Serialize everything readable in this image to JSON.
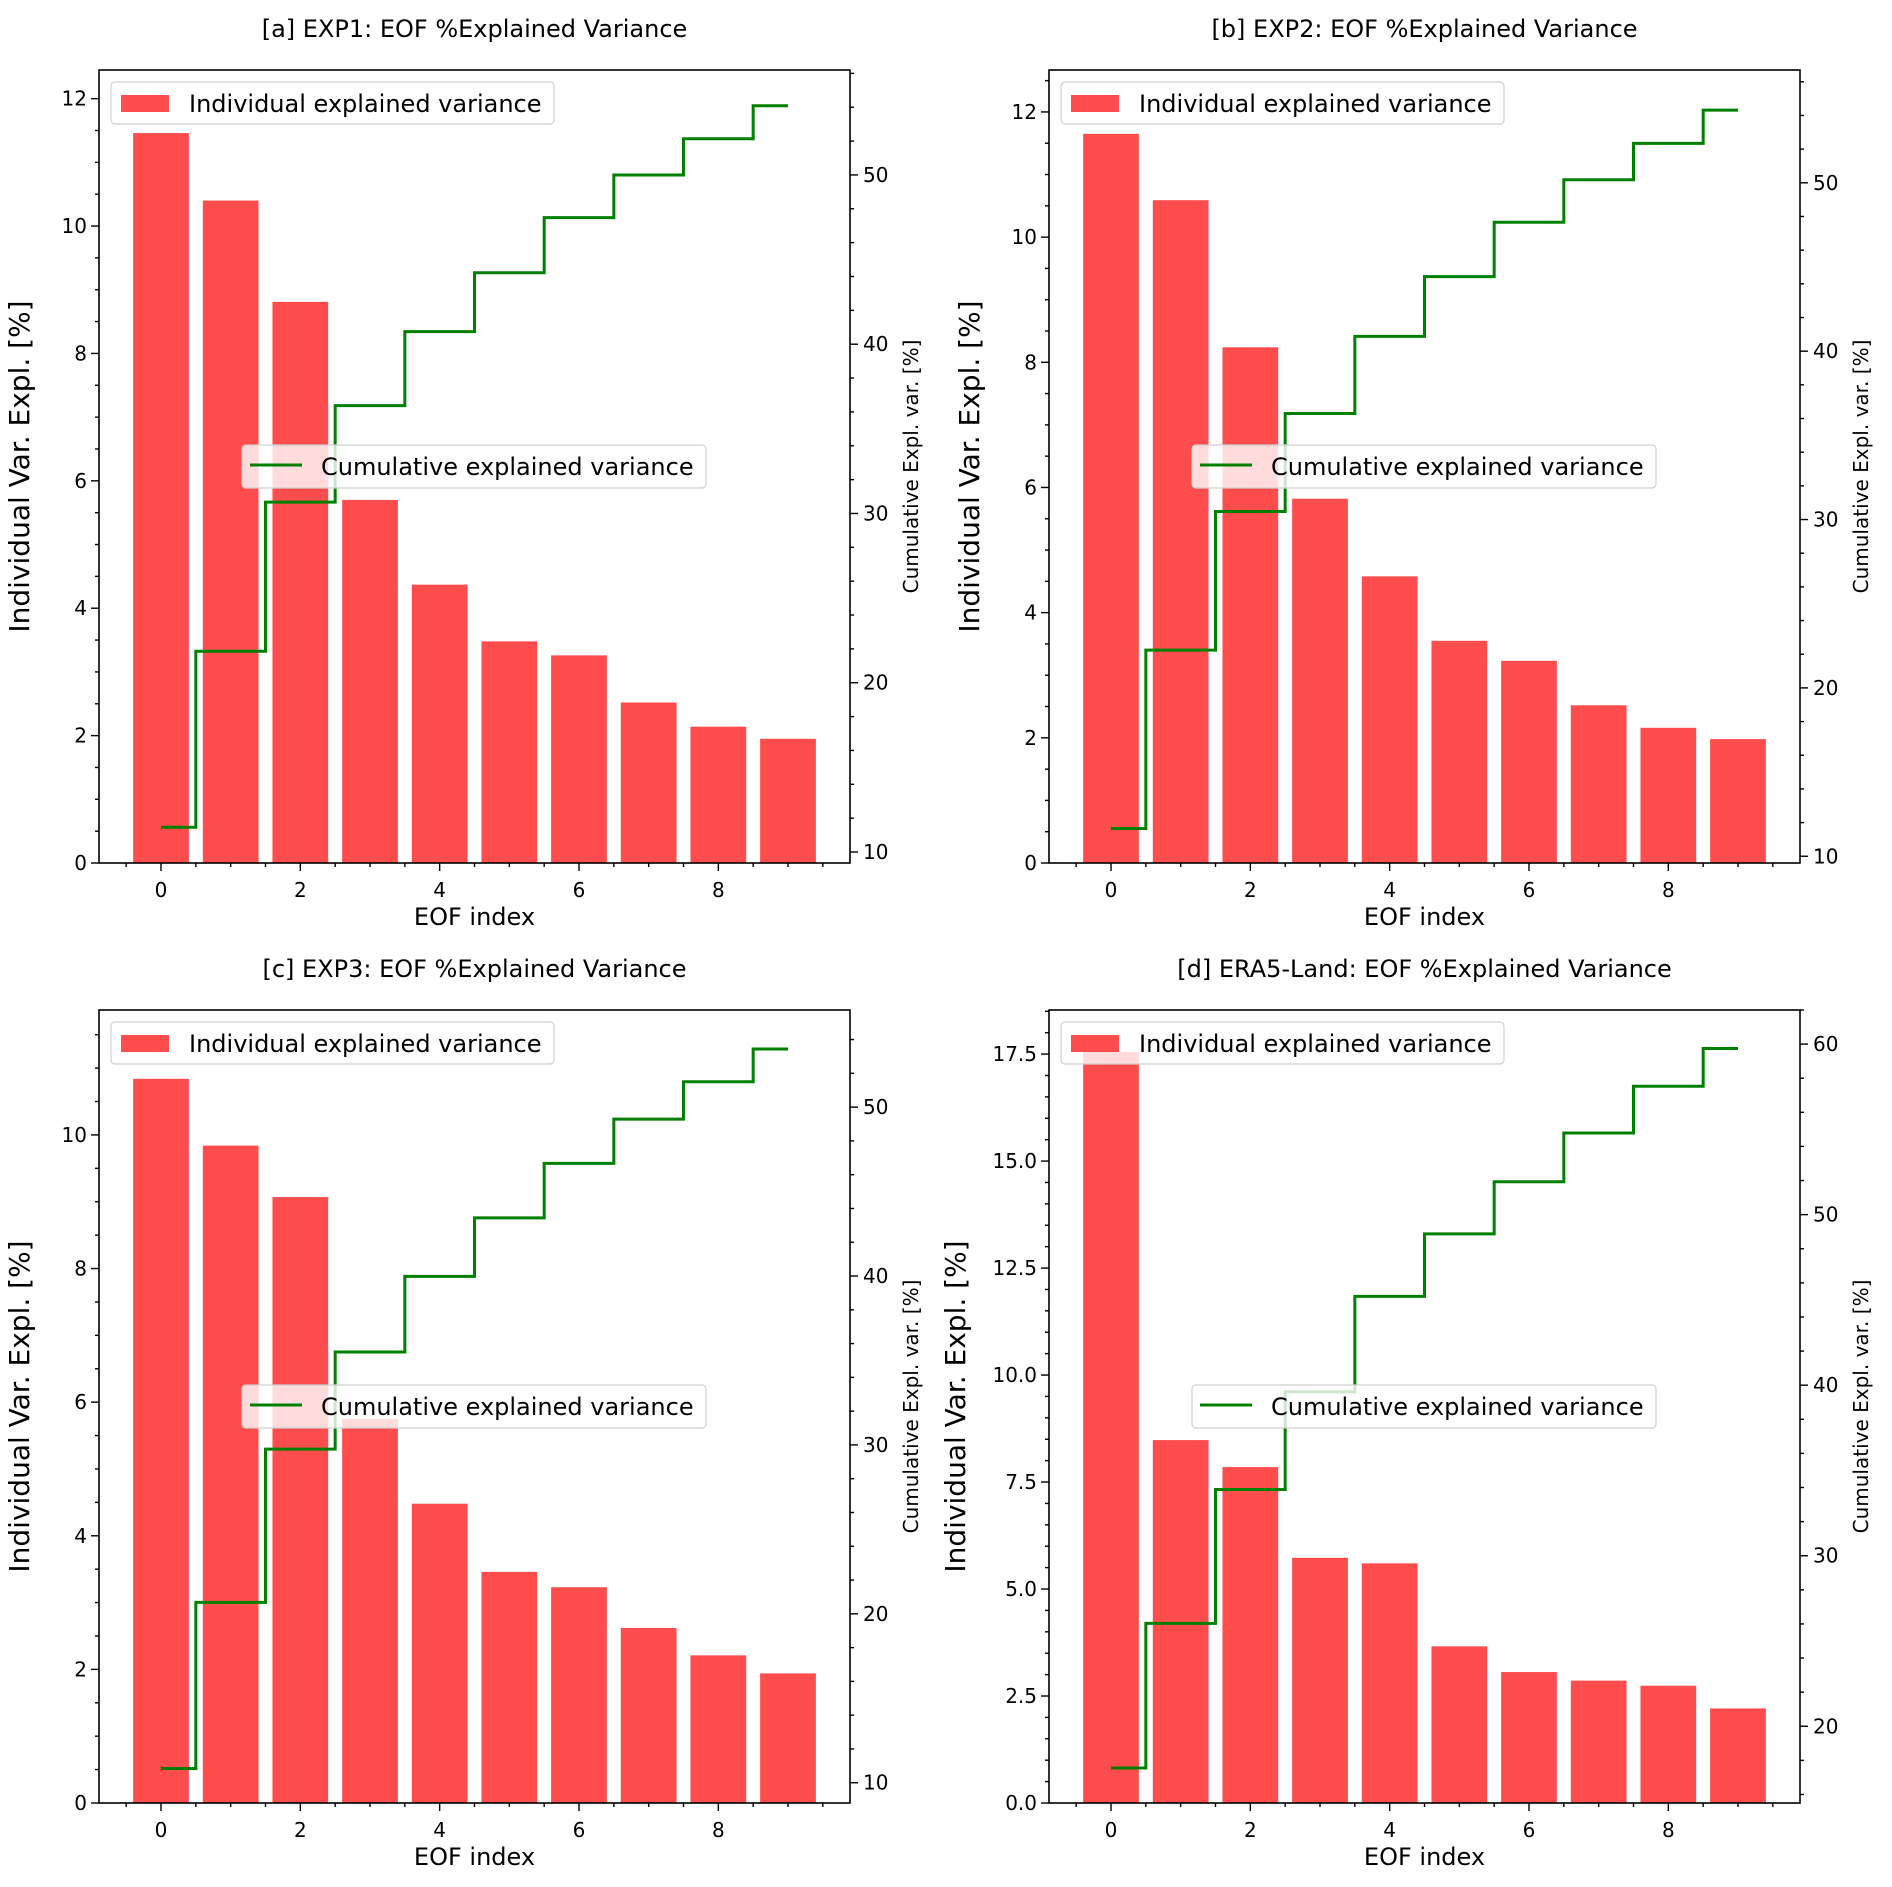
{
  "colors": {
    "bar": "#ff4d4d",
    "line": "#008000",
    "axis": "#000000",
    "legend_border": "#d0d0d0"
  },
  "chart_data": [
    {
      "id": "a",
      "type": "bar",
      "title": "[a] EXP1: EOF %Explained Variance",
      "xlabel": "EOF index",
      "ylabel": "Individual Var. Expl. [%]",
      "ylabel_right": "Cumulative Expl. var. [%]",
      "categories": [
        0,
        1,
        2,
        3,
        4,
        5,
        6,
        7,
        8,
        9
      ],
      "xticks": [
        0,
        2,
        4,
        6,
        8
      ],
      "xlim": [
        -0.89,
        9.89
      ],
      "ylim": [
        0,
        12.45
      ],
      "yticks": [
        0,
        2,
        4,
        6,
        8,
        10,
        12
      ],
      "yticks_minor_step": 0.5,
      "ylim_right": [
        9.35,
        56.2
      ],
      "yticks_right": [
        10,
        20,
        30,
        40,
        50
      ],
      "yticks_right_minor_step": 2,
      "legend": [
        "Individual explained variance",
        "Cumulative explained variance"
      ],
      "legend_placement": [
        "upper-left",
        "center"
      ],
      "series": [
        {
          "name": "Individual explained variance",
          "type": "bar",
          "axis": "left",
          "values": [
            11.46,
            10.4,
            8.81,
            5.7,
            4.37,
            3.48,
            3.26,
            2.52,
            2.14,
            1.95
          ]
        },
        {
          "name": "Cumulative explained variance",
          "type": "step",
          "axis": "right",
          "values": [
            11.46,
            21.86,
            30.67,
            36.37,
            40.74,
            44.22,
            47.48,
            50.0,
            52.14,
            54.09
          ]
        }
      ]
    },
    {
      "id": "b",
      "type": "bar",
      "title": "[b] EXP2: EOF %Explained Variance",
      "xlabel": "EOF index",
      "ylabel": "Individual Var. Expl. [%]",
      "ylabel_right": "Cumulative Expl. var. [%]",
      "categories": [
        0,
        1,
        2,
        3,
        4,
        5,
        6,
        7,
        8,
        9
      ],
      "xticks": [
        0,
        2,
        4,
        6,
        8
      ],
      "xlim": [
        -0.89,
        9.89
      ],
      "ylim": [
        0,
        12.67
      ],
      "yticks": [
        0,
        2,
        4,
        6,
        8,
        10,
        12
      ],
      "yticks_minor_step": 0.5,
      "ylim_right": [
        9.6,
        56.7
      ],
      "yticks_right": [
        10,
        20,
        30,
        40,
        50
      ],
      "yticks_right_minor_step": 2,
      "legend": [
        "Individual explained variance",
        "Cumulative explained variance"
      ],
      "legend_placement": [
        "upper-left",
        "center"
      ],
      "series": [
        {
          "name": "Individual explained variance",
          "type": "bar",
          "axis": "left",
          "values": [
            11.65,
            10.59,
            8.24,
            5.82,
            4.58,
            3.55,
            3.23,
            2.52,
            2.16,
            1.98
          ]
        },
        {
          "name": "Cumulative explained variance",
          "type": "step",
          "axis": "right",
          "values": [
            11.65,
            22.24,
            30.48,
            36.3,
            40.88,
            44.43,
            47.66,
            50.18,
            52.34,
            54.32
          ]
        }
      ]
    },
    {
      "id": "c",
      "type": "bar",
      "title": "[c] EXP3: EOF %Explained Variance",
      "xlabel": "EOF index",
      "ylabel": "Individual Var. Expl. [%]",
      "ylabel_right": "Cumulative Expl. var. [%]",
      "categories": [
        0,
        1,
        2,
        3,
        4,
        5,
        6,
        7,
        8,
        9
      ],
      "xticks": [
        0,
        2,
        4,
        6,
        8
      ],
      "xlim": [
        -0.89,
        9.89
      ],
      "ylim": [
        0,
        11.87
      ],
      "yticks": [
        0,
        2,
        4,
        6,
        8,
        10
      ],
      "yticks_minor_step": 0.5,
      "ylim_right": [
        8.8,
        55.75
      ],
      "yticks_right": [
        10,
        20,
        30,
        40,
        50
      ],
      "yticks_right_minor_step": 2,
      "legend": [
        "Individual explained variance",
        "Cumulative explained variance"
      ],
      "legend_placement": [
        "upper-left",
        "center"
      ],
      "series": [
        {
          "name": "Individual explained variance",
          "type": "bar",
          "axis": "left",
          "values": [
            10.84,
            9.84,
            9.07,
            5.75,
            4.48,
            3.46,
            3.23,
            2.62,
            2.21,
            1.94
          ]
        },
        {
          "name": "Cumulative explained variance",
          "type": "step",
          "axis": "right",
          "values": [
            10.84,
            20.68,
            29.75,
            35.5,
            39.98,
            43.44,
            46.67,
            49.29,
            51.5,
            53.44
          ]
        }
      ]
    },
    {
      "id": "d",
      "type": "bar",
      "title": "[d] ERA5-Land: EOF %Explained Variance",
      "xlabel": "EOF index",
      "ylabel": "Individual Var. Expl. [%]",
      "ylabel_right": "Cumulative Expl. var. [%]",
      "categories": [
        0,
        1,
        2,
        3,
        4,
        5,
        6,
        7,
        8,
        9
      ],
      "xticks": [
        0,
        2,
        4,
        6,
        8
      ],
      "xlim": [
        -0.89,
        9.89
      ],
      "ylim": [
        0,
        18.53
      ],
      "yticks": [
        0,
        2.5,
        5,
        7.5,
        10,
        12.5,
        15,
        17.5
      ],
      "ytick_labels": [
        "0.0",
        "2.5",
        "5.0",
        "7.5",
        "10.0",
        "12.5",
        "15.0",
        "17.5"
      ],
      "yticks_minor_step": 0.5,
      "ylim_right": [
        15.5,
        62.0
      ],
      "yticks_right": [
        20,
        30,
        40,
        50,
        60
      ],
      "yticks_right_minor_step": 2,
      "legend": [
        "Individual explained variance",
        "Cumulative explained variance"
      ],
      "legend_placement": [
        "upper-left",
        "center"
      ],
      "series": [
        {
          "name": "Individual explained variance",
          "type": "bar",
          "axis": "left",
          "values": [
            17.55,
            8.48,
            7.85,
            5.73,
            5.6,
            3.66,
            3.06,
            2.86,
            2.74,
            2.21
          ]
        },
        {
          "name": "Cumulative explained variance",
          "type": "step",
          "axis": "right",
          "values": [
            17.55,
            26.03,
            33.88,
            39.61,
            45.21,
            48.87,
            51.93,
            54.79,
            57.53,
            59.74
          ]
        }
      ]
    }
  ]
}
